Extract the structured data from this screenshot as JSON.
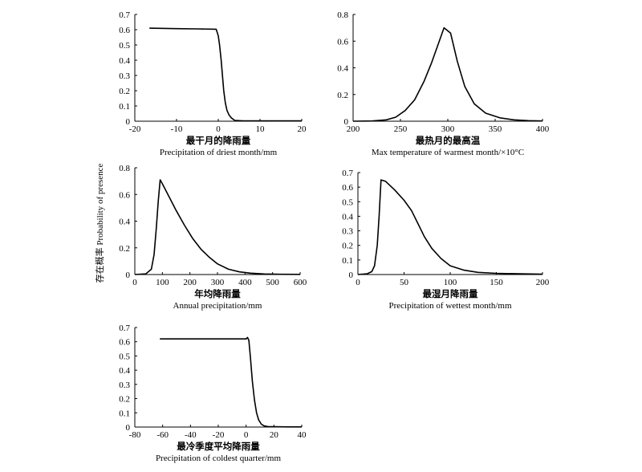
{
  "shared_ylabel": "存在概率 Probability of presence",
  "chart_data": [
    {
      "type": "line",
      "xlabel_cn": "最干月的降雨量",
      "xlabel_en": "Precipitation of driest month/mm",
      "xlim": [
        -20,
        20
      ],
      "ylim": [
        0,
        0.7
      ],
      "xticks": [
        "-20",
        "-10",
        "0",
        "10",
        "20"
      ],
      "yticks": [
        "0",
        "0.1",
        "0.2",
        "0.3",
        "0.4",
        "0.5",
        "0.6",
        "0.7"
      ],
      "series": [
        {
          "x": [
            -16.5,
            -10,
            -5,
            -0.5,
            0,
            0.3,
            0.7,
            1.0,
            1.3,
            1.7,
            2.1,
            2.6,
            3.2,
            4.0,
            6,
            20
          ],
          "y": [
            0.61,
            0.607,
            0.605,
            0.603,
            0.56,
            0.5,
            0.4,
            0.3,
            0.2,
            0.12,
            0.07,
            0.04,
            0.02,
            0.005,
            0.002,
            0.002
          ]
        }
      ]
    },
    {
      "type": "line",
      "xlabel_cn": "最热月的最高温",
      "xlabel_en": "Max temperature of warmest month/×10°C",
      "xlim": [
        200,
        400
      ],
      "ylim": [
        0,
        0.8
      ],
      "xticks": [
        "200",
        "250",
        "300",
        "350",
        "400"
      ],
      "yticks": [
        "0",
        "0.2",
        "0.4",
        "0.6",
        "0.8"
      ],
      "series": [
        {
          "x": [
            200,
            220,
            235,
            245,
            255,
            265,
            275,
            283,
            290,
            296,
            303,
            310,
            318,
            328,
            340,
            355,
            370,
            385,
            400
          ],
          "y": [
            0,
            0.002,
            0.01,
            0.03,
            0.08,
            0.16,
            0.3,
            0.44,
            0.58,
            0.7,
            0.66,
            0.45,
            0.26,
            0.13,
            0.06,
            0.025,
            0.01,
            0.004,
            0.002
          ]
        }
      ]
    },
    {
      "type": "line",
      "xlabel_cn": "年均降雨量",
      "xlabel_en": "Annual precipitation/mm",
      "xlim": [
        0,
        600
      ],
      "ylim": [
        0,
        0.8
      ],
      "xticks": [
        "0",
        "100",
        "200",
        "300",
        "400",
        "500",
        "600"
      ],
      "yticks": [
        "0",
        "0.2",
        "0.4",
        "0.6",
        "0.8"
      ],
      "series": [
        {
          "x": [
            0,
            40,
            60,
            70,
            78,
            85,
            92,
            100,
            120,
            150,
            180,
            210,
            240,
            270,
            300,
            340,
            380,
            420,
            470,
            530,
            600
          ],
          "y": [
            0,
            0.005,
            0.04,
            0.15,
            0.35,
            0.55,
            0.71,
            0.68,
            0.6,
            0.48,
            0.37,
            0.27,
            0.19,
            0.13,
            0.08,
            0.04,
            0.02,
            0.01,
            0.004,
            0.002,
            0.001
          ]
        }
      ]
    },
    {
      "type": "line",
      "xlabel_cn": "最湿月降雨量",
      "xlabel_en": "Precipitation of wettest month/mm",
      "xlim": [
        0,
        200
      ],
      "ylim": [
        0,
        0.7
      ],
      "xticks": [
        "0",
        "50",
        "100",
        "150",
        "200"
      ],
      "yticks": [
        "0",
        "0.1",
        "0.2",
        "0.3",
        "0.4",
        "0.5",
        "0.6",
        "0.7"
      ],
      "series": [
        {
          "x": [
            0,
            10,
            15,
            18,
            21,
            23,
            25,
            30,
            40,
            50,
            58,
            65,
            72,
            80,
            90,
            100,
            115,
            130,
            150,
            175,
            200
          ],
          "y": [
            0,
            0.005,
            0.02,
            0.06,
            0.2,
            0.4,
            0.65,
            0.64,
            0.58,
            0.51,
            0.44,
            0.35,
            0.26,
            0.18,
            0.11,
            0.06,
            0.03,
            0.015,
            0.008,
            0.005,
            0.003
          ]
        }
      ]
    },
    {
      "type": "line",
      "xlabel_cn": "最冷季度平均降雨量",
      "xlabel_en": "Precipitation of coldest quarter/mm",
      "xlim": [
        -80,
        40
      ],
      "ylim": [
        0,
        0.7
      ],
      "xticks": [
        "-80",
        "-60",
        "-40",
        "-20",
        "0",
        "20",
        "40"
      ],
      "yticks": [
        "0",
        "0.1",
        "0.2",
        "0.3",
        "0.4",
        "0.5",
        "0.6",
        "0.7"
      ],
      "series": [
        {
          "x": [
            -62,
            -40,
            -20,
            -5,
            0,
            1,
            2,
            3,
            4.5,
            6,
            7.5,
            9,
            11,
            13,
            16,
            20,
            30,
            40
          ],
          "y": [
            0.62,
            0.62,
            0.62,
            0.62,
            0.62,
            0.63,
            0.61,
            0.5,
            0.32,
            0.19,
            0.1,
            0.05,
            0.02,
            0.008,
            0.003,
            0.002,
            0.001,
            0.001
          ]
        }
      ]
    }
  ]
}
